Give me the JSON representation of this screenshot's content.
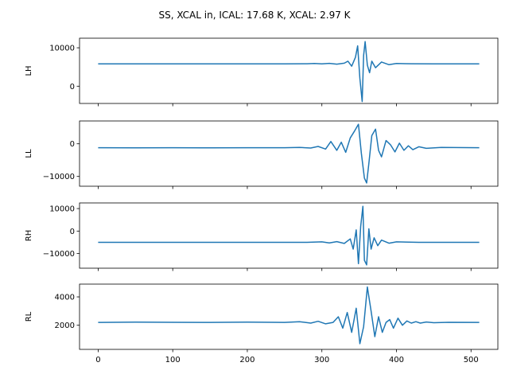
{
  "chart_data": {
    "type": "line",
    "title": "SS, XCAL in, ICAL: 17.68 K, XCAL: 2.97 K",
    "shared_x": true,
    "xlim": [
      -25,
      536
    ],
    "x_ticks": [
      0,
      100,
      200,
      300,
      400,
      500
    ],
    "series_color": "#1f77b4",
    "panels": [
      {
        "ylabel": "LH",
        "ylim": [
          -4500,
          12500
        ],
        "y_ticks": [
          0,
          10000
        ],
        "y_tick_labels": [
          "0",
          "10000"
        ],
        "x": [
          0,
          250,
          280,
          290,
          300,
          310,
          320,
          330,
          335,
          340,
          345,
          348,
          351,
          354,
          356,
          358,
          361,
          364,
          367,
          372,
          380,
          390,
          400,
          420,
          450,
          511
        ],
        "y": [
          5800,
          5800,
          5850,
          5900,
          5800,
          5950,
          5750,
          6000,
          6500,
          5200,
          7500,
          10500,
          2000,
          -4000,
          8000,
          11600,
          5500,
          3500,
          6500,
          4800,
          6300,
          5600,
          5900,
          5850,
          5800,
          5800
        ]
      },
      {
        "ylabel": "LL",
        "ylim": [
          -13000,
          7000
        ],
        "y_ticks": [
          0,
          -10000
        ],
        "y_tick_labels": [
          "0",
          "−10000"
        ],
        "x": [
          0,
          50,
          100,
          150,
          200,
          250,
          270,
          285,
          295,
          305,
          312,
          320,
          326,
          332,
          338,
          344,
          349,
          353,
          357,
          360,
          363,
          367,
          372,
          376,
          380,
          386,
          392,
          398,
          404,
          410,
          416,
          422,
          430,
          440,
          460,
          511
        ],
        "y": [
          -1200,
          -1250,
          -1200,
          -1250,
          -1200,
          -1200,
          -1100,
          -1300,
          -800,
          -1600,
          700,
          -2000,
          500,
          -2600,
          1800,
          4000,
          6000,
          -3000,
          -10500,
          -12000,
          -6000,
          2500,
          4500,
          -2000,
          -4000,
          1000,
          -300,
          -2500,
          200,
          -2000,
          -600,
          -1800,
          -900,
          -1400,
          -1100,
          -1200
        ]
      },
      {
        "ylabel": "RH",
        "ylim": [
          -16500,
          12500
        ],
        "y_ticks": [
          10000,
          0,
          -10000
        ],
        "y_tick_labels": [
          "10000",
          "0",
          "−10000"
        ],
        "x": [
          0,
          100,
          200,
          280,
          300,
          310,
          320,
          330,
          338,
          342,
          346,
          349,
          352,
          355,
          357,
          360,
          363,
          366,
          370,
          375,
          380,
          390,
          400,
          430,
          511
        ],
        "y": [
          -5000,
          -5000,
          -5000,
          -5000,
          -4800,
          -5300,
          -4700,
          -5500,
          -3500,
          -8000,
          500,
          -14500,
          2000,
          11000,
          -13000,
          -15000,
          1000,
          -8000,
          -3000,
          -6500,
          -4000,
          -5400,
          -4800,
          -5000,
          -5000
        ]
      },
      {
        "ylabel": "RL",
        "ylim": [
          300,
          4900
        ],
        "y_ticks": [
          2000,
          4000
        ],
        "y_tick_labels": [
          "2000",
          "4000"
        ],
        "x": [
          0,
          50,
          100,
          150,
          200,
          250,
          270,
          285,
          295,
          305,
          315,
          322,
          328,
          334,
          340,
          346,
          351,
          356,
          361,
          366,
          371,
          376,
          381,
          386,
          391,
          396,
          402,
          408,
          414,
          420,
          426,
          432,
          440,
          450,
          470,
          511
        ],
        "y": [
          2200,
          2220,
          2210,
          2200,
          2220,
          2200,
          2250,
          2150,
          2280,
          2100,
          2200,
          2600,
          1800,
          2900,
          1500,
          3200,
          700,
          1900,
          4700,
          3000,
          1200,
          2600,
          1500,
          2200,
          2400,
          1800,
          2500,
          2000,
          2300,
          2150,
          2250,
          2150,
          2230,
          2180,
          2210,
          2200
        ]
      }
    ]
  }
}
